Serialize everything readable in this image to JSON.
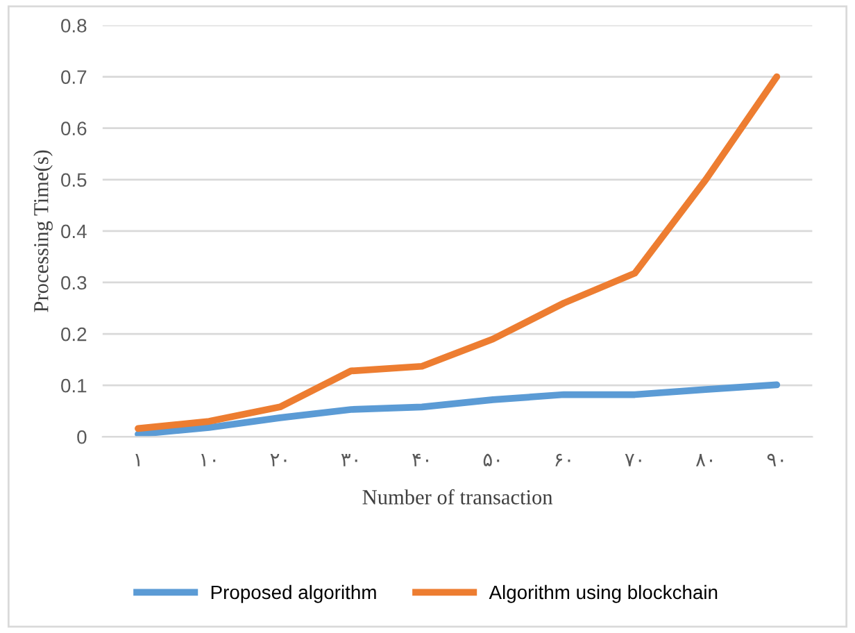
{
  "chart_data": {
    "type": "line",
    "xlabel": "Number of transaction",
    "ylabel": "Processing Time(s)",
    "categories": [
      "۱",
      "۱۰",
      "۲۰",
      "۳۰",
      "۴۰",
      "۵۰",
      "۶۰",
      "۷۰",
      "۸۰",
      "۹۰"
    ],
    "series": [
      {
        "name": "Proposed algorithm",
        "color": "#5b9bd5",
        "values": [
          0.005,
          0.018,
          0.037,
          0.053,
          0.058,
          0.072,
          0.082,
          0.082,
          0.092,
          0.101
        ]
      },
      {
        "name": "Algorithm using blockchain",
        "color": "#ed7d31",
        "values": [
          0.016,
          0.03,
          0.058,
          0.128,
          0.137,
          0.19,
          0.26,
          0.318,
          0.5,
          0.7
        ]
      }
    ],
    "ylim": [
      0,
      0.8
    ],
    "yticks": [
      0,
      0.1,
      0.2,
      0.3,
      0.4,
      0.5,
      0.6,
      0.7,
      0.8
    ],
    "grid": "y",
    "legend": "bottom",
    "marker": "none",
    "line_style": "solid"
  }
}
